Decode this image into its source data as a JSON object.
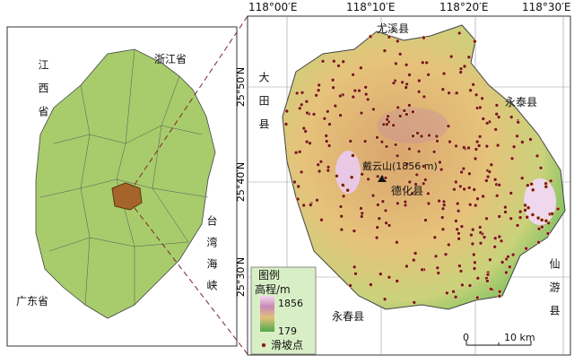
{
  "left_map": {
    "labels": [
      "江西省",
      "浙江省",
      "台湾海峡",
      "广东省"
    ]
  },
  "right_map": {
    "lon_labels": [
      "118°00′E",
      "118°10′E",
      "118°20′E",
      "118°30′E"
    ],
    "lat_labels": [
      "25°50′N",
      "25°40′N",
      "25°30′N"
    ],
    "places": [
      "尤溪县",
      "大田县",
      "永泰县",
      "戴云山(1856 m)",
      "德化县",
      "永春县",
      "仙游县"
    ],
    "legend": {
      "title": "图例",
      "elevation_label": "高程/m",
      "max": 1856,
      "min": 179,
      "point_label": "滑坡点"
    },
    "scale": {
      "start": "0",
      "end": "10 km"
    }
  }
}
